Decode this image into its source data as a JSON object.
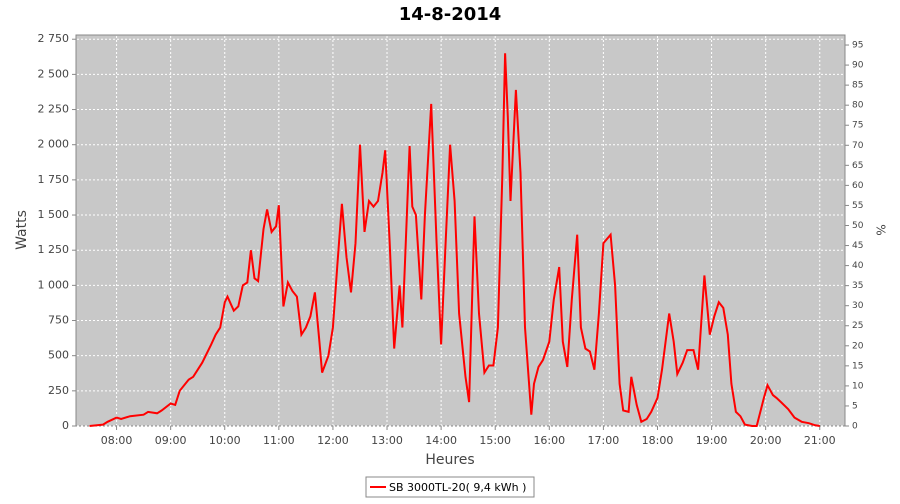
{
  "chart_data": {
    "type": "line",
    "title": "14-8-2014",
    "x_label": "Heures",
    "y_label": "Watts",
    "y2_label": "%",
    "x": [
      "07:30",
      "07:45",
      "07:50",
      "08:00",
      "08:05",
      "08:15",
      "08:30",
      "08:35",
      "08:45",
      "08:50",
      "09:00",
      "09:05",
      "09:10",
      "09:20",
      "09:25",
      "09:35",
      "09:45",
      "09:50",
      "09:55",
      "10:00",
      "10:03",
      "10:10",
      "10:15",
      "10:20",
      "10:25",
      "10:29",
      "10:33",
      "10:37",
      "10:43",
      "10:47",
      "10:52",
      "10:57",
      "11:00",
      "11:05",
      "11:10",
      "11:15",
      "11:20",
      "11:25",
      "11:30",
      "11:35",
      "11:40",
      "11:45",
      "11:48",
      "11:55",
      "12:00",
      "12:05",
      "12:10",
      "12:15",
      "12:20",
      "12:25",
      "12:30",
      "12:35",
      "12:40",
      "12:45",
      "12:50",
      "12:55",
      "12:58",
      "13:03",
      "13:08",
      "13:14",
      "13:17",
      "13:25",
      "13:28",
      "13:32",
      "13:38",
      "13:42",
      "13:49",
      "13:55",
      "14:00",
      "14:05",
      "14:10",
      "14:15",
      "14:20",
      "14:27",
      "14:31",
      "14:37",
      "14:42",
      "14:48",
      "14:53",
      "14:58",
      "15:03",
      "15:08",
      "15:11",
      "15:14",
      "15:17",
      "15:23",
      "15:28",
      "15:33",
      "15:40",
      "15:43",
      "15:48",
      "15:53",
      "16:00",
      "16:05",
      "16:11",
      "16:15",
      "16:20",
      "16:25",
      "16:31",
      "16:35",
      "16:40",
      "16:45",
      "16:50",
      "16:55",
      "17:00",
      "17:08",
      "17:13",
      "17:18",
      "17:22",
      "17:28",
      "17:31",
      "17:37",
      "17:42",
      "17:48",
      "17:53",
      "18:00",
      "18:05",
      "18:13",
      "18:18",
      "18:22",
      "18:28",
      "18:33",
      "18:40",
      "18:45",
      "18:52",
      "18:58",
      "19:03",
      "19:08",
      "19:13",
      "19:18",
      "19:22",
      "19:27",
      "19:32",
      "19:37",
      "19:45",
      "19:50",
      "19:58",
      "20:02",
      "20:08",
      "20:12",
      "20:17",
      "20:25",
      "20:32",
      "20:40",
      "20:48",
      "20:55",
      "21:00"
    ],
    "series": [
      {
        "name": "SB 3000TL-20( 9,4 kWh )",
        "color": "#ff0000",
        "values": [
          0,
          10,
          30,
          60,
          50,
          70,
          80,
          100,
          90,
          110,
          160,
          150,
          250,
          330,
          350,
          450,
          580,
          650,
          700,
          880,
          920,
          820,
          850,
          1000,
          1020,
          1250,
          1050,
          1030,
          1400,
          1540,
          1380,
          1420,
          1570,
          850,
          1020,
          960,
          920,
          650,
          700,
          780,
          950,
          600,
          380,
          500,
          700,
          1150,
          1580,
          1200,
          950,
          1300,
          2000,
          1380,
          1600,
          1560,
          1600,
          1800,
          1960,
          1300,
          550,
          1000,
          700,
          1990,
          1560,
          1500,
          900,
          1500,
          2290,
          1300,
          580,
          1300,
          2000,
          1600,
          800,
          350,
          170,
          1490,
          800,
          380,
          430,
          430,
          700,
          1800,
          2650,
          2200,
          1600,
          2390,
          1800,
          700,
          80,
          300,
          420,
          470,
          600,
          900,
          1130,
          600,
          420,
          900,
          1360,
          700,
          550,
          530,
          400,
          800,
          1300,
          1360,
          1000,
          300,
          110,
          100,
          350,
          150,
          30,
          50,
          100,
          200,
          400,
          800,
          600,
          370,
          450,
          540,
          540,
          400,
          1070,
          650,
          780,
          880,
          840,
          650,
          300,
          100,
          70,
          10,
          0,
          0,
          200,
          290,
          220,
          200,
          170,
          120,
          60,
          30,
          20,
          5,
          0
        ]
      }
    ],
    "xlim": [
      "07:15",
      "21:28"
    ],
    "xticks": [
      "08:00",
      "09:00",
      "10:00",
      "11:00",
      "12:00",
      "13:00",
      "14:00",
      "15:00",
      "16:00",
      "17:00",
      "18:00",
      "19:00",
      "20:00",
      "21:00"
    ],
    "ylim": [
      0,
      2780
    ],
    "yticks": [
      0,
      250,
      500,
      750,
      {
        "value": 1000,
        "label": "1 000"
      },
      {
        "value": 1250,
        "label": "1 250"
      },
      {
        "value": 1500,
        "label": "1 500"
      },
      {
        "value": 1750,
        "label": "1 750"
      },
      {
        "value": 2000,
        "label": "2 000"
      },
      {
        "value": 2250,
        "label": "2 250"
      },
      {
        "value": 2500,
        "label": "2 500"
      },
      {
        "value": 2750,
        "label": "2 750"
      }
    ],
    "y2lim": [
      0,
      97.5
    ],
    "y2ticks": [
      0,
      5,
      10,
      15,
      20,
      25,
      30,
      35,
      40,
      45,
      50,
      55,
      60,
      65,
      70,
      75,
      80,
      85,
      90,
      95
    ],
    "grid": true
  }
}
